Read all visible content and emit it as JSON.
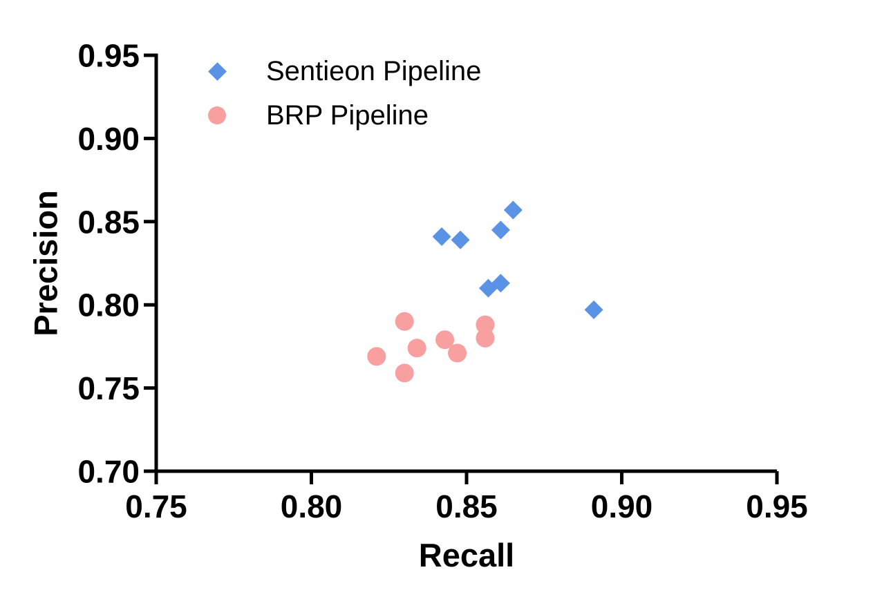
{
  "figure": {
    "background_color": "#ffffff",
    "axis_color": "#000000"
  },
  "chart_data": {
    "type": "scatter",
    "title": "",
    "xlabel": "Recall",
    "ylabel": "Precision",
    "xlim": [
      0.75,
      0.95
    ],
    "ylim": [
      0.7,
      0.95
    ],
    "xticks": [
      0.75,
      0.8,
      0.85,
      0.9,
      0.95
    ],
    "yticks": [
      0.7,
      0.75,
      0.8,
      0.85,
      0.9,
      0.95
    ],
    "grid": false,
    "legend_position": "top-left-inside",
    "series": [
      {
        "name": "Sentieon Pipeline",
        "marker": "diamond",
        "color": "#5A92E5",
        "points": [
          {
            "x": 0.842,
            "y": 0.841
          },
          {
            "x": 0.848,
            "y": 0.839
          },
          {
            "x": 0.857,
            "y": 0.81
          },
          {
            "x": 0.861,
            "y": 0.813
          },
          {
            "x": 0.861,
            "y": 0.845
          },
          {
            "x": 0.865,
            "y": 0.857
          },
          {
            "x": 0.891,
            "y": 0.797
          }
        ]
      },
      {
        "name": "BRP Pipeline",
        "marker": "circle",
        "color": "#F8A0A0",
        "points": [
          {
            "x": 0.821,
            "y": 0.769
          },
          {
            "x": 0.83,
            "y": 0.79
          },
          {
            "x": 0.83,
            "y": 0.759
          },
          {
            "x": 0.834,
            "y": 0.774
          },
          {
            "x": 0.843,
            "y": 0.779
          },
          {
            "x": 0.847,
            "y": 0.771
          },
          {
            "x": 0.856,
            "y": 0.788
          },
          {
            "x": 0.856,
            "y": 0.78
          }
        ]
      }
    ]
  }
}
